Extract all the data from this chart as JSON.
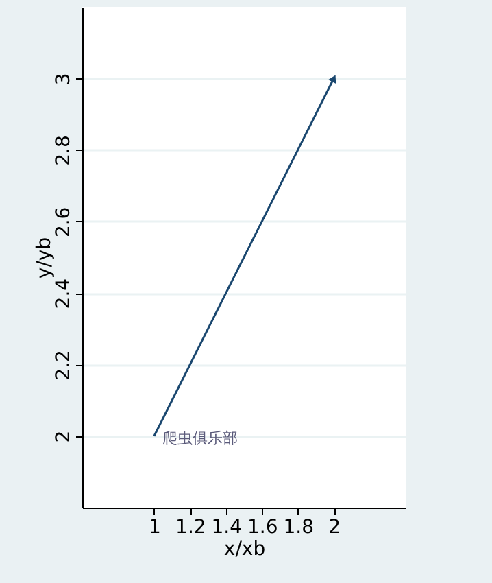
{
  "chart_data": {
    "type": "line",
    "xlabel": "x/xb",
    "ylabel": "y/yb",
    "x": [
      1,
      2
    ],
    "series": [
      {
        "color": "#1a476f",
        "values": [
          2,
          3
        ]
      }
    ],
    "xlim": [
      0.6,
      2.4
    ],
    "ylim": [
      1.8,
      3.2
    ],
    "xticks": [
      1,
      1.2,
      1.4,
      1.6,
      1.8,
      2
    ],
    "yticks": [
      2,
      2.2,
      2.4,
      2.6,
      2.8,
      3
    ],
    "grid": "y",
    "line_style": "solid",
    "annotations": [
      {
        "text": "爬虫俱乐部",
        "x": 1,
        "y": 2
      }
    ]
  }
}
